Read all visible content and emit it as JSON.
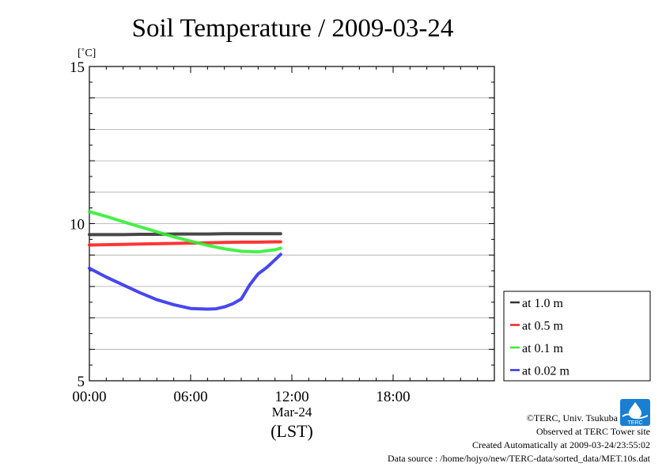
{
  "chart_data": {
    "type": "line",
    "title": "Soil Temperature / 2009-03-24",
    "ylabel": "[˚C]",
    "xlabel": "(LST)",
    "x_date_label": "Mar-24",
    "ylim": [
      5,
      15
    ],
    "yticks": [
      5,
      10,
      15
    ],
    "xlim": [
      "00:00",
      "24:00"
    ],
    "xticks": [
      "00:00",
      "06:00",
      "12:00",
      "18:00"
    ],
    "grid": true,
    "legend_position": "right",
    "series": [
      {
        "name": "at 1.0 m",
        "color": "#333333",
        "x": [
          "00:00",
          "01:00",
          "02:00",
          "03:00",
          "04:00",
          "05:00",
          "06:00",
          "07:00",
          "08:00",
          "09:00",
          "10:00",
          "11:00",
          "11:20"
        ],
        "y": [
          9.65,
          9.65,
          9.65,
          9.66,
          9.66,
          9.67,
          9.67,
          9.67,
          9.68,
          9.68,
          9.68,
          9.68,
          9.68
        ]
      },
      {
        "name": "at 0.5 m",
        "color": "#ff2020",
        "x": [
          "00:00",
          "01:00",
          "02:00",
          "03:00",
          "04:00",
          "05:00",
          "06:00",
          "07:00",
          "08:00",
          "09:00",
          "10:00",
          "11:00",
          "11:20"
        ],
        "y": [
          9.32,
          9.33,
          9.34,
          9.35,
          9.36,
          9.37,
          9.38,
          9.39,
          9.4,
          9.41,
          9.41,
          9.42,
          9.42
        ]
      },
      {
        "name": "at 0.1 m",
        "color": "#33ee33",
        "x": [
          "00:00",
          "01:00",
          "02:00",
          "03:00",
          "04:00",
          "05:00",
          "06:00",
          "07:00",
          "08:00",
          "09:00",
          "10:00",
          "11:00",
          "11:20"
        ],
        "y": [
          10.38,
          10.23,
          10.06,
          9.9,
          9.74,
          9.58,
          9.44,
          9.31,
          9.2,
          9.12,
          9.1,
          9.17,
          9.22
        ]
      },
      {
        "name": "at 0.02 m",
        "color": "#3333ee",
        "x": [
          "00:00",
          "01:00",
          "02:00",
          "03:00",
          "04:00",
          "05:00",
          "06:00",
          "07:00",
          "07:30",
          "08:00",
          "08:30",
          "09:00",
          "09:30",
          "10:00",
          "10:30",
          "11:00",
          "11:20"
        ],
        "y": [
          8.58,
          8.3,
          8.05,
          7.8,
          7.58,
          7.42,
          7.3,
          7.28,
          7.29,
          7.35,
          7.45,
          7.6,
          8.05,
          8.4,
          8.6,
          8.85,
          9.02
        ]
      }
    ]
  },
  "credits": {
    "copyright": "©TERC, Univ. Tsukuba",
    "site": "Observed at TERC Tower site",
    "created": "Created Automatically at 2009-03-24/23:55:02",
    "source": "Data source : /home/hojyo/new/TERC-data/sorted_data/MET.10s.dat"
  },
  "logo": {
    "name": "terc-logo-icon",
    "text": "TERC",
    "color": "#1a7fd1"
  }
}
